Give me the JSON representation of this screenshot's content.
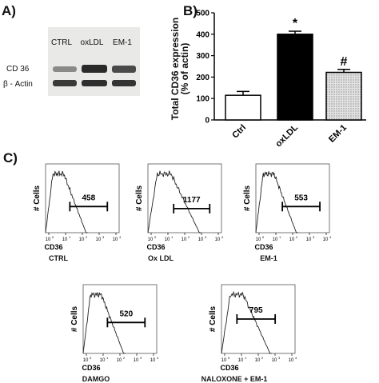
{
  "panels": {
    "a": "A)",
    "b": "B)",
    "c": "C)"
  },
  "blot": {
    "columns": [
      "CTRL",
      "oxLDL",
      "EM-1"
    ],
    "rows": [
      "CD 36",
      "β - Actin"
    ]
  },
  "chart_data": [
    {
      "type": "bar",
      "panel": "B",
      "categories": [
        "Ctrl",
        "oxLDL",
        "EM-1"
      ],
      "values": [
        115,
        400,
        222
      ],
      "errors": [
        18,
        14,
        14
      ],
      "fills": [
        "#ffffff",
        "#000000",
        "dotted-gray"
      ],
      "annotations": [
        "",
        "*",
        "#"
      ],
      "ylabel_line1": "Total CD36 expression",
      "ylabel_line2": "(% of actin)",
      "ylim": [
        0,
        500
      ],
      "yticks": [
        "0",
        "100",
        "200",
        "300",
        "400",
        "500"
      ],
      "grid": false
    },
    {
      "type": "line",
      "panel": "C",
      "subplots": [
        {
          "name": "CTRL",
          "mfi": "458",
          "ylabel": "# Cells",
          "xlabel": "CD36"
        },
        {
          "name": "Ox LDL",
          "mfi": "1177",
          "ylabel": "# Cells",
          "xlabel": "CD36"
        },
        {
          "name": "EM-1",
          "mfi": "553",
          "ylabel": "# Cells",
          "xlabel": "CD36"
        },
        {
          "name": "DAMGO",
          "mfi": "520",
          "ylabel": "# Cells",
          "xlabel": "CD36"
        },
        {
          "name": "NALOXONE + EM-1",
          "mfi": "795",
          "ylabel": "# Cells",
          "xlabel": "CD36"
        }
      ],
      "xticks": [
        "10",
        "10",
        "10",
        "10",
        "10"
      ],
      "xtick_exponents": [
        "0",
        "1",
        "2",
        "3",
        "4"
      ],
      "xscale": "log",
      "grid": false
    }
  ]
}
